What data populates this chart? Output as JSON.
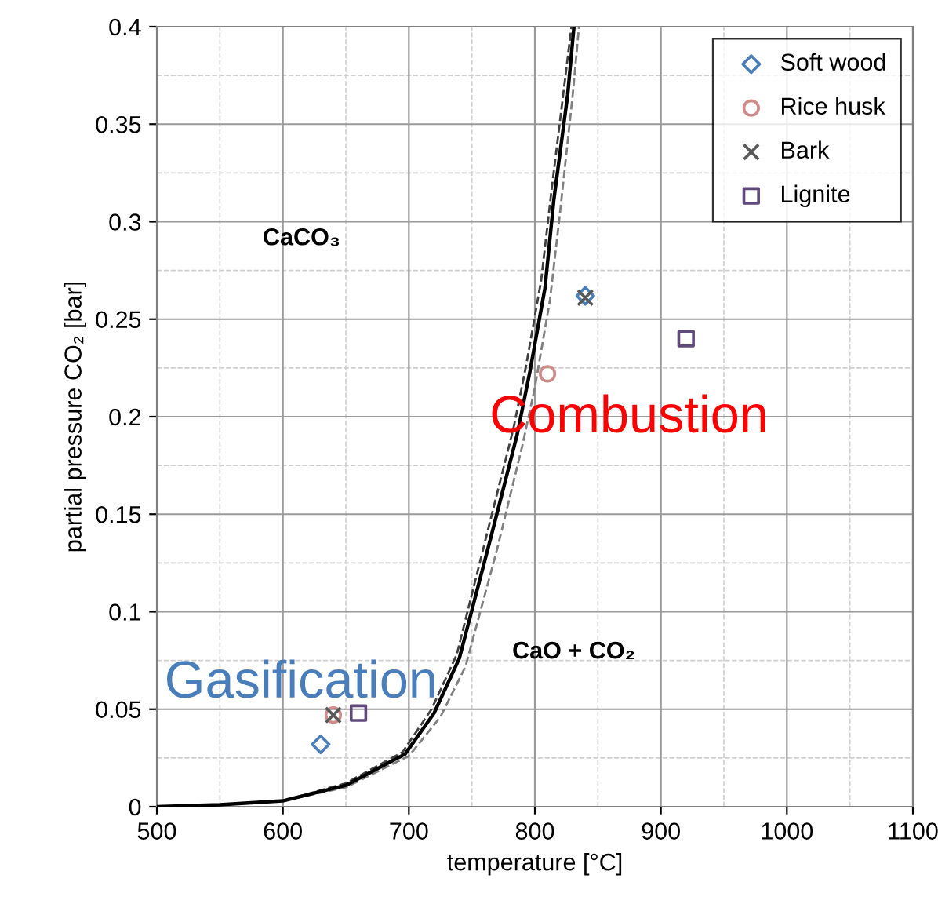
{
  "chart_data": {
    "type": "scatter",
    "xlabel": "temperature [°C]",
    "ylabel": "partial pressure CO₂ [bar]",
    "xlim": [
      500,
      1100
    ],
    "xticks": [
      500,
      600,
      700,
      800,
      900,
      1000,
      1100
    ],
    "ylim": [
      0,
      0.4
    ],
    "yticks": [
      0,
      0.05,
      0.1,
      0.15,
      0.2,
      0.25,
      0.3,
      0.35,
      0.4
    ],
    "grid": true,
    "legend": "top right",
    "series": [
      {
        "type": "line",
        "color": "#000000",
        "line_style": "solid",
        "marker": "none",
        "x": [
          500,
          550,
          600,
          650,
          697,
          720,
          740,
          765,
          786,
          796,
          808,
          815,
          826,
          831
        ],
        "values": [
          0,
          0.001,
          0.003,
          0.011,
          0.027,
          0.048,
          0.076,
          0.138,
          0.191,
          0.223,
          0.266,
          0.311,
          0.365,
          0.4
        ]
      },
      {
        "type": "line",
        "color": "#808080",
        "line_style": "dashed",
        "marker": "none",
        "x": [
          500,
          550,
          600,
          650,
          700,
          725,
          745,
          770,
          790,
          800,
          812,
          820,
          830,
          835
        ],
        "values": [
          0,
          0.001,
          0.003,
          0.01,
          0.026,
          0.046,
          0.072,
          0.132,
          0.185,
          0.215,
          0.26,
          0.305,
          0.365,
          0.4
        ]
      },
      {
        "type": "line",
        "color": "#404040",
        "line_style": "dashed",
        "marker": "none",
        "x": [
          500,
          550,
          600,
          650,
          695,
          718,
          738,
          762,
          783,
          793,
          805,
          813,
          823,
          829
        ],
        "values": [
          0,
          0.001,
          0.003,
          0.012,
          0.028,
          0.05,
          0.078,
          0.14,
          0.194,
          0.226,
          0.27,
          0.315,
          0.368,
          0.4
        ]
      },
      {
        "name": "Soft wood",
        "color": "#4a7ebb",
        "marker": "diamond",
        "x": [
          630,
          840
        ],
        "values": [
          0.032,
          0.262
        ]
      },
      {
        "name": "Rice husk",
        "color": "#d08a8a",
        "marker": "circle",
        "x": [
          640,
          810
        ],
        "values": [
          0.047,
          0.222
        ]
      },
      {
        "name": "Bark",
        "color": "#595959",
        "marker": "cross",
        "x": [
          640,
          840
        ],
        "values": [
          0.047,
          0.261
        ]
      },
      {
        "name": "Lignite",
        "color": "#604a7b",
        "marker": "square",
        "x": [
          660,
          920
        ],
        "values": [
          0.048,
          0.24
        ]
      }
    ],
    "annotations": [
      "CaCO₃",
      "Combustion",
      "Gasification",
      "CaO + CO₂"
    ]
  }
}
